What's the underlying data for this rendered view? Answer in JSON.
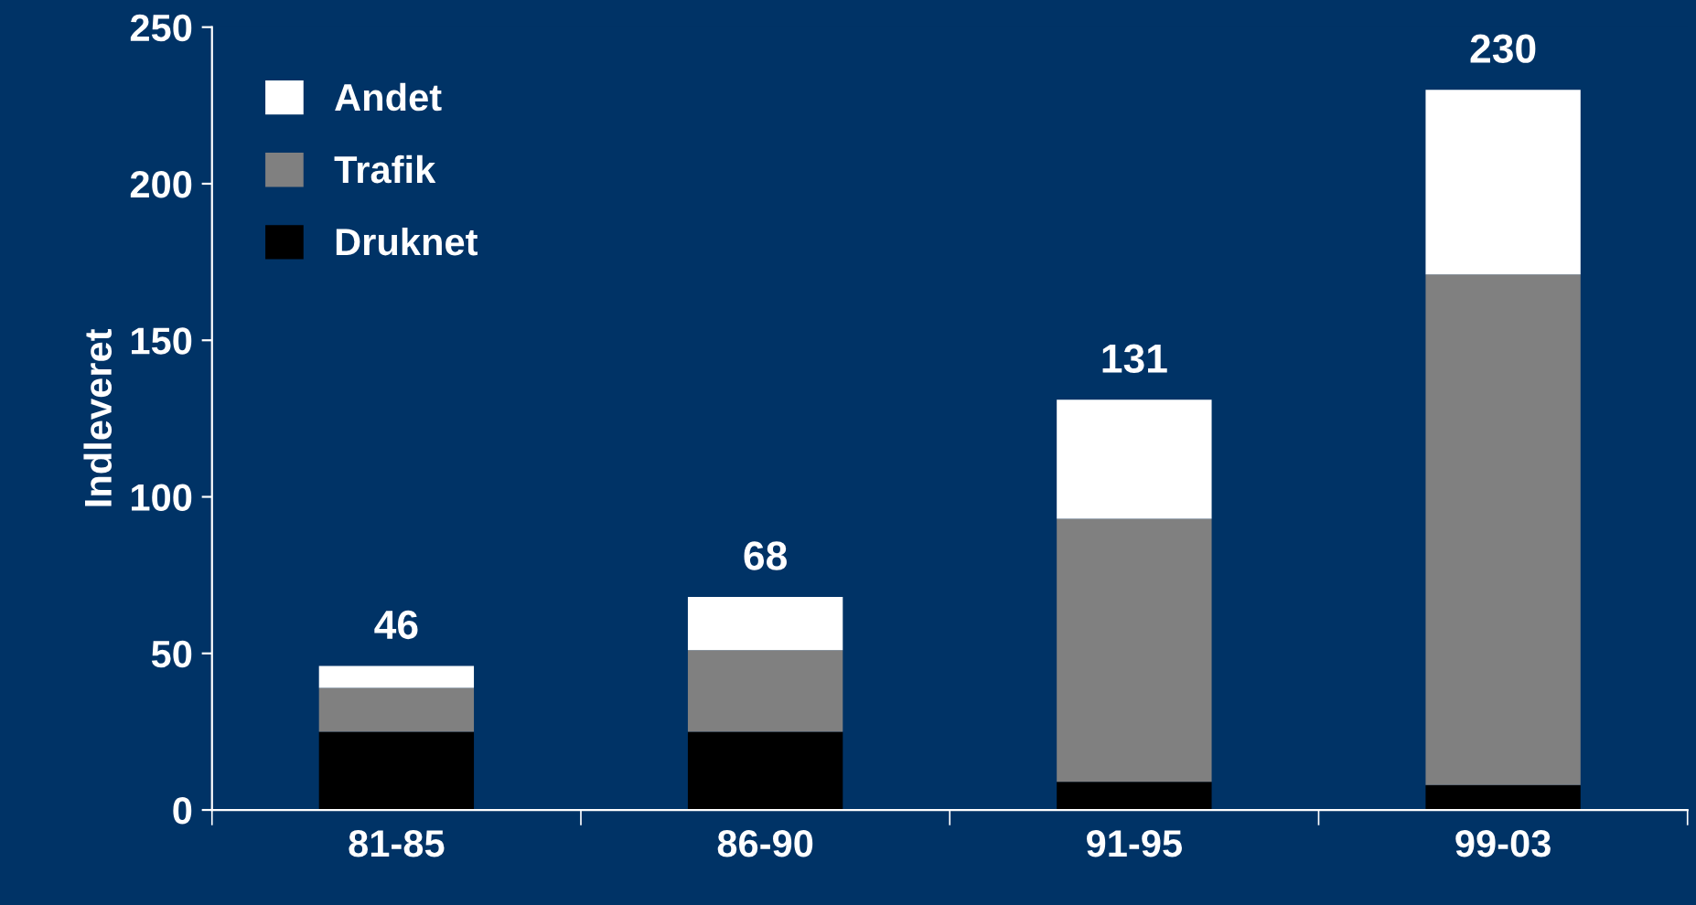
{
  "chart_data": {
    "type": "bar",
    "ylabel": "Indleveret",
    "categories": [
      "81-85",
      "86-90",
      "91-95",
      "99-03"
    ],
    "stacked": true,
    "series": [
      {
        "name": "Druknet",
        "color": "#000000",
        "values": [
          25,
          25,
          9,
          8
        ]
      },
      {
        "name": "Trafik",
        "color": "#808080",
        "values": [
          14,
          26,
          84,
          163
        ]
      },
      {
        "name": "Andet",
        "color": "#ffffff",
        "values": [
          7,
          17,
          38,
          59
        ]
      }
    ],
    "totals": [
      "46",
      "68",
      "131",
      "230"
    ],
    "ylim": [
      0,
      250
    ],
    "yticks": [
      0,
      50,
      100,
      150,
      200,
      250
    ],
    "grid": false,
    "legend": "top left"
  }
}
